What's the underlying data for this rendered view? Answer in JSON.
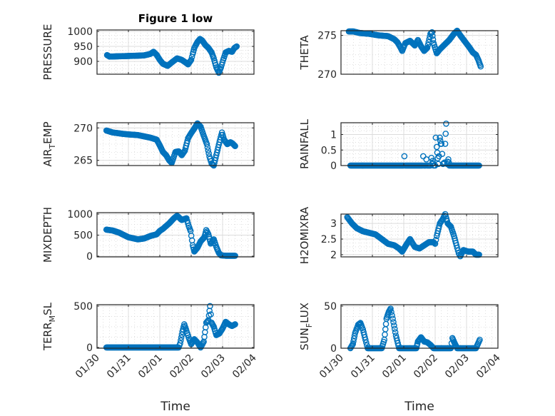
{
  "chart_data": [
    {
      "type": "scatter",
      "title": "Figure 1 low",
      "ylabel": "PRESSURE",
      "xlabel": "",
      "xlim": [
        0,
        5
      ],
      "ylim": [
        857,
        1005
      ],
      "yticks": [
        900,
        950,
        1000
      ],
      "grid": true,
      "x": [
        0.32,
        0.4,
        0.7,
        1.0,
        1.3,
        1.5,
        1.7,
        1.8,
        1.9,
        2.0,
        2.1,
        2.25,
        2.4,
        2.55,
        2.7,
        2.8,
        2.9,
        3.0,
        3.05,
        3.1,
        3.15,
        3.2,
        3.28,
        3.35,
        3.45,
        3.55,
        3.65,
        3.72,
        3.8,
        3.88,
        3.95,
        4.02,
        4.1,
        4.2,
        4.3,
        4.38,
        4.45
      ],
      "y": [
        921,
        916,
        917,
        918,
        919,
        920,
        925,
        932,
        922,
        905,
        892,
        885,
        898,
        910,
        905,
        898,
        890,
        905,
        925,
        945,
        955,
        965,
        975,
        970,
        955,
        945,
        930,
        910,
        880,
        862,
        880,
        905,
        930,
        935,
        932,
        945,
        950
      ]
    },
    {
      "type": "scatter",
      "title": "",
      "ylabel": "THETA",
      "xlabel": "",
      "xlim": [
        0,
        5
      ],
      "ylim": [
        270,
        275.6
      ],
      "yticks": [
        270,
        275
      ],
      "grid": true,
      "x": [
        0.25,
        0.4,
        0.6,
        0.9,
        1.2,
        1.5,
        1.7,
        1.8,
        1.9,
        1.95,
        2.05,
        2.2,
        2.35,
        2.45,
        2.55,
        2.65,
        2.75,
        2.85,
        2.9,
        2.95,
        3.05,
        3.15,
        3.3,
        3.45,
        3.6,
        3.7,
        3.8,
        3.95,
        4.1,
        4.2,
        4.3,
        4.38,
        4.45
      ],
      "y": [
        275.5,
        275.5,
        275.3,
        275.2,
        275.0,
        274.9,
        274.5,
        274.1,
        273.4,
        273.0,
        274.0,
        274.3,
        273.7,
        274.4,
        273.6,
        273.0,
        273.4,
        275.2,
        275.4,
        274.0,
        272.7,
        273.2,
        273.8,
        274.4,
        275.2,
        275.6,
        275.0,
        274.2,
        273.4,
        272.8,
        272.5,
        271.8,
        271.0
      ]
    },
    {
      "type": "scatter",
      "title": "",
      "ylabel": "AIR_TEMP",
      "xlabel": "",
      "xlim": [
        0,
        5
      ],
      "ylim": [
        264.2,
        270.8
      ],
      "yticks": [
        265,
        270
      ],
      "grid": true,
      "x": [
        0.3,
        0.5,
        0.8,
        1.0,
        1.3,
        1.5,
        1.7,
        1.9,
        2.0,
        2.1,
        2.2,
        2.3,
        2.38,
        2.5,
        2.6,
        2.7,
        2.8,
        2.9,
        3.0,
        3.1,
        3.2,
        3.3,
        3.4,
        3.5,
        3.58,
        3.65,
        3.72,
        3.8,
        3.9,
        3.98,
        4.05,
        4.15,
        4.25,
        4.32,
        4.4
      ],
      "y": [
        269.6,
        269.3,
        269.1,
        269.0,
        268.9,
        268.7,
        268.5,
        268.2,
        267.3,
        266.3,
        265.8,
        265.0,
        264.6,
        266.3,
        266.4,
        265.8,
        266.5,
        268.4,
        269.2,
        269.9,
        270.7,
        270.2,
        268.8,
        267.5,
        265.6,
        264.5,
        264.2,
        265.8,
        267.8,
        269.3,
        268.2,
        267.5,
        267.8,
        267.6,
        267.2
      ]
    },
    {
      "type": "scatter",
      "title": "",
      "ylabel": "RAINFALL",
      "xlabel": "",
      "xlim": [
        0,
        5
      ],
      "ylim": [
        0,
        1.38
      ],
      "yticks": [
        0,
        0.5,
        1
      ],
      "grid": true,
      "x": [
        0.3,
        2.0,
        2.02,
        2.04,
        2.6,
        2.62,
        2.64,
        2.7,
        2.72,
        2.74,
        2.85,
        2.88,
        2.9,
        2.92,
        2.95,
        3.0,
        3.02,
        3.05,
        3.1,
        3.12,
        3.15,
        3.18,
        3.2,
        3.25,
        3.3,
        3.32,
        3.35,
        3.38,
        3.42,
        3.45,
        3.5,
        4.4
      ],
      "y": [
        0,
        0,
        0.3,
        0,
        0,
        0.3,
        0,
        0,
        0.2,
        0,
        0,
        0.25,
        0.05,
        0.15,
        0,
        0,
        0.9,
        0.6,
        0.05,
        0.3,
        0.9,
        0.7,
        0.7,
        0.05,
        0.1,
        0.7,
        1.35,
        0.05,
        0.2,
        0,
        0,
        0
      ]
    },
    {
      "type": "scatter",
      "title": "",
      "ylabel": "MIXDEPTH",
      "xlabel": "",
      "xlim": [
        0,
        5
      ],
      "ylim": [
        -17,
        1034
      ],
      "yticks": [
        0,
        500,
        1000
      ],
      "grid": true,
      "x": [
        0.3,
        0.5,
        0.7,
        1.0,
        1.3,
        1.5,
        1.7,
        1.9,
        2.0,
        2.1,
        2.3,
        2.45,
        2.55,
        2.7,
        2.85,
        2.92,
        2.98,
        3.05,
        3.1,
        3.2,
        3.3,
        3.42,
        3.48,
        3.55,
        3.62,
        3.72,
        3.8,
        3.88,
        3.95,
        4.1,
        4.4
      ],
      "y": [
        630,
        610,
        560,
        450,
        400,
        420,
        480,
        520,
        600,
        650,
        780,
        900,
        960,
        860,
        900,
        720,
        600,
        260,
        110,
        200,
        350,
        450,
        620,
        520,
        300,
        400,
        220,
        80,
        20,
        10,
        10
      ]
    },
    {
      "type": "scatter",
      "title": "",
      "ylabel": "H2OMIXRA",
      "xlabel": "",
      "xlim": [
        0,
        5
      ],
      "ylim": [
        1.93,
        3.3
      ],
      "yticks": [
        2,
        2.5,
        3
      ],
      "grid": true,
      "x": [
        0.2,
        0.35,
        0.5,
        0.7,
        0.9,
        1.1,
        1.3,
        1.5,
        1.7,
        1.85,
        1.95,
        2.1,
        2.2,
        2.35,
        2.5,
        2.65,
        2.8,
        2.95,
        3.0,
        3.05,
        3.15,
        3.25,
        3.32,
        3.4,
        3.5,
        3.6,
        3.68,
        3.75,
        3.8,
        3.9,
        4.05,
        4.2,
        4.3,
        4.4
      ],
      "y": [
        3.2,
        3.0,
        2.85,
        2.75,
        2.7,
        2.65,
        2.5,
        2.35,
        2.3,
        2.2,
        2.1,
        2.35,
        2.5,
        2.25,
        2.2,
        2.3,
        2.4,
        2.4,
        2.35,
        2.6,
        3.0,
        3.15,
        3.3,
        3.0,
        2.9,
        2.6,
        2.3,
        2.05,
        1.95,
        2.15,
        2.1,
        2.1,
        2.0,
        2.0
      ]
    },
    {
      "type": "scatter",
      "title": "",
      "ylabel": "TERR_MSL",
      "xlabel": "Time",
      "xlim": [
        0,
        5
      ],
      "ylim": [
        -9,
        517
      ],
      "yticks": [
        0,
        500
      ],
      "grid": true,
      "xticklabels": [
        "01/30",
        "01/31",
        "02/01",
        "02/02",
        "02/03",
        "02/04"
      ],
      "x": [
        0.3,
        1.0,
        2.0,
        2.6,
        2.65,
        2.72,
        2.78,
        2.85,
        2.92,
        3.0,
        3.1,
        3.2,
        3.3,
        3.4,
        3.48,
        3.55,
        3.6,
        3.65,
        3.72,
        3.8,
        3.9,
        4.0,
        4.1,
        4.2,
        4.3,
        4.4
      ],
      "y": [
        0,
        0,
        0,
        0,
        50,
        190,
        280,
        200,
        120,
        40,
        100,
        60,
        0,
        70,
        300,
        330,
        500,
        300,
        250,
        150,
        170,
        230,
        310,
        280,
        260,
        280
      ]
    },
    {
      "type": "scatter",
      "title": "",
      "ylabel": "SUN_FLUX",
      "xlabel": "Time",
      "xlim": [
        0,
        5
      ],
      "ylim": [
        0,
        51.7
      ],
      "yticks": [
        0,
        50
      ],
      "grid": true,
      "xticklabels": [
        "01/30",
        "01/31",
        "02/01",
        "02/02",
        "02/03",
        "02/04"
      ],
      "x": [
        0.3,
        0.38,
        0.45,
        0.55,
        0.62,
        0.7,
        0.78,
        0.85,
        1.0,
        1.3,
        1.38,
        1.45,
        1.52,
        1.58,
        1.65,
        1.75,
        1.85,
        2.0,
        2.4,
        2.45,
        2.55,
        2.65,
        2.75,
        2.85,
        2.95,
        3.2,
        3.5,
        3.55,
        3.62,
        3.7,
        4.0,
        4.3,
        4.36,
        4.42
      ],
      "y": [
        0,
        5,
        18,
        28,
        30,
        22,
        10,
        0,
        0,
        0,
        10,
        35,
        43,
        47,
        35,
        15,
        0,
        0,
        0,
        8,
        13,
        8,
        7,
        4,
        0,
        0,
        0,
        12,
        6,
        0,
        0,
        0,
        5,
        10
      ]
    }
  ],
  "figure": {
    "title": "Figure 1 low",
    "marker_color": "#0072BD"
  }
}
